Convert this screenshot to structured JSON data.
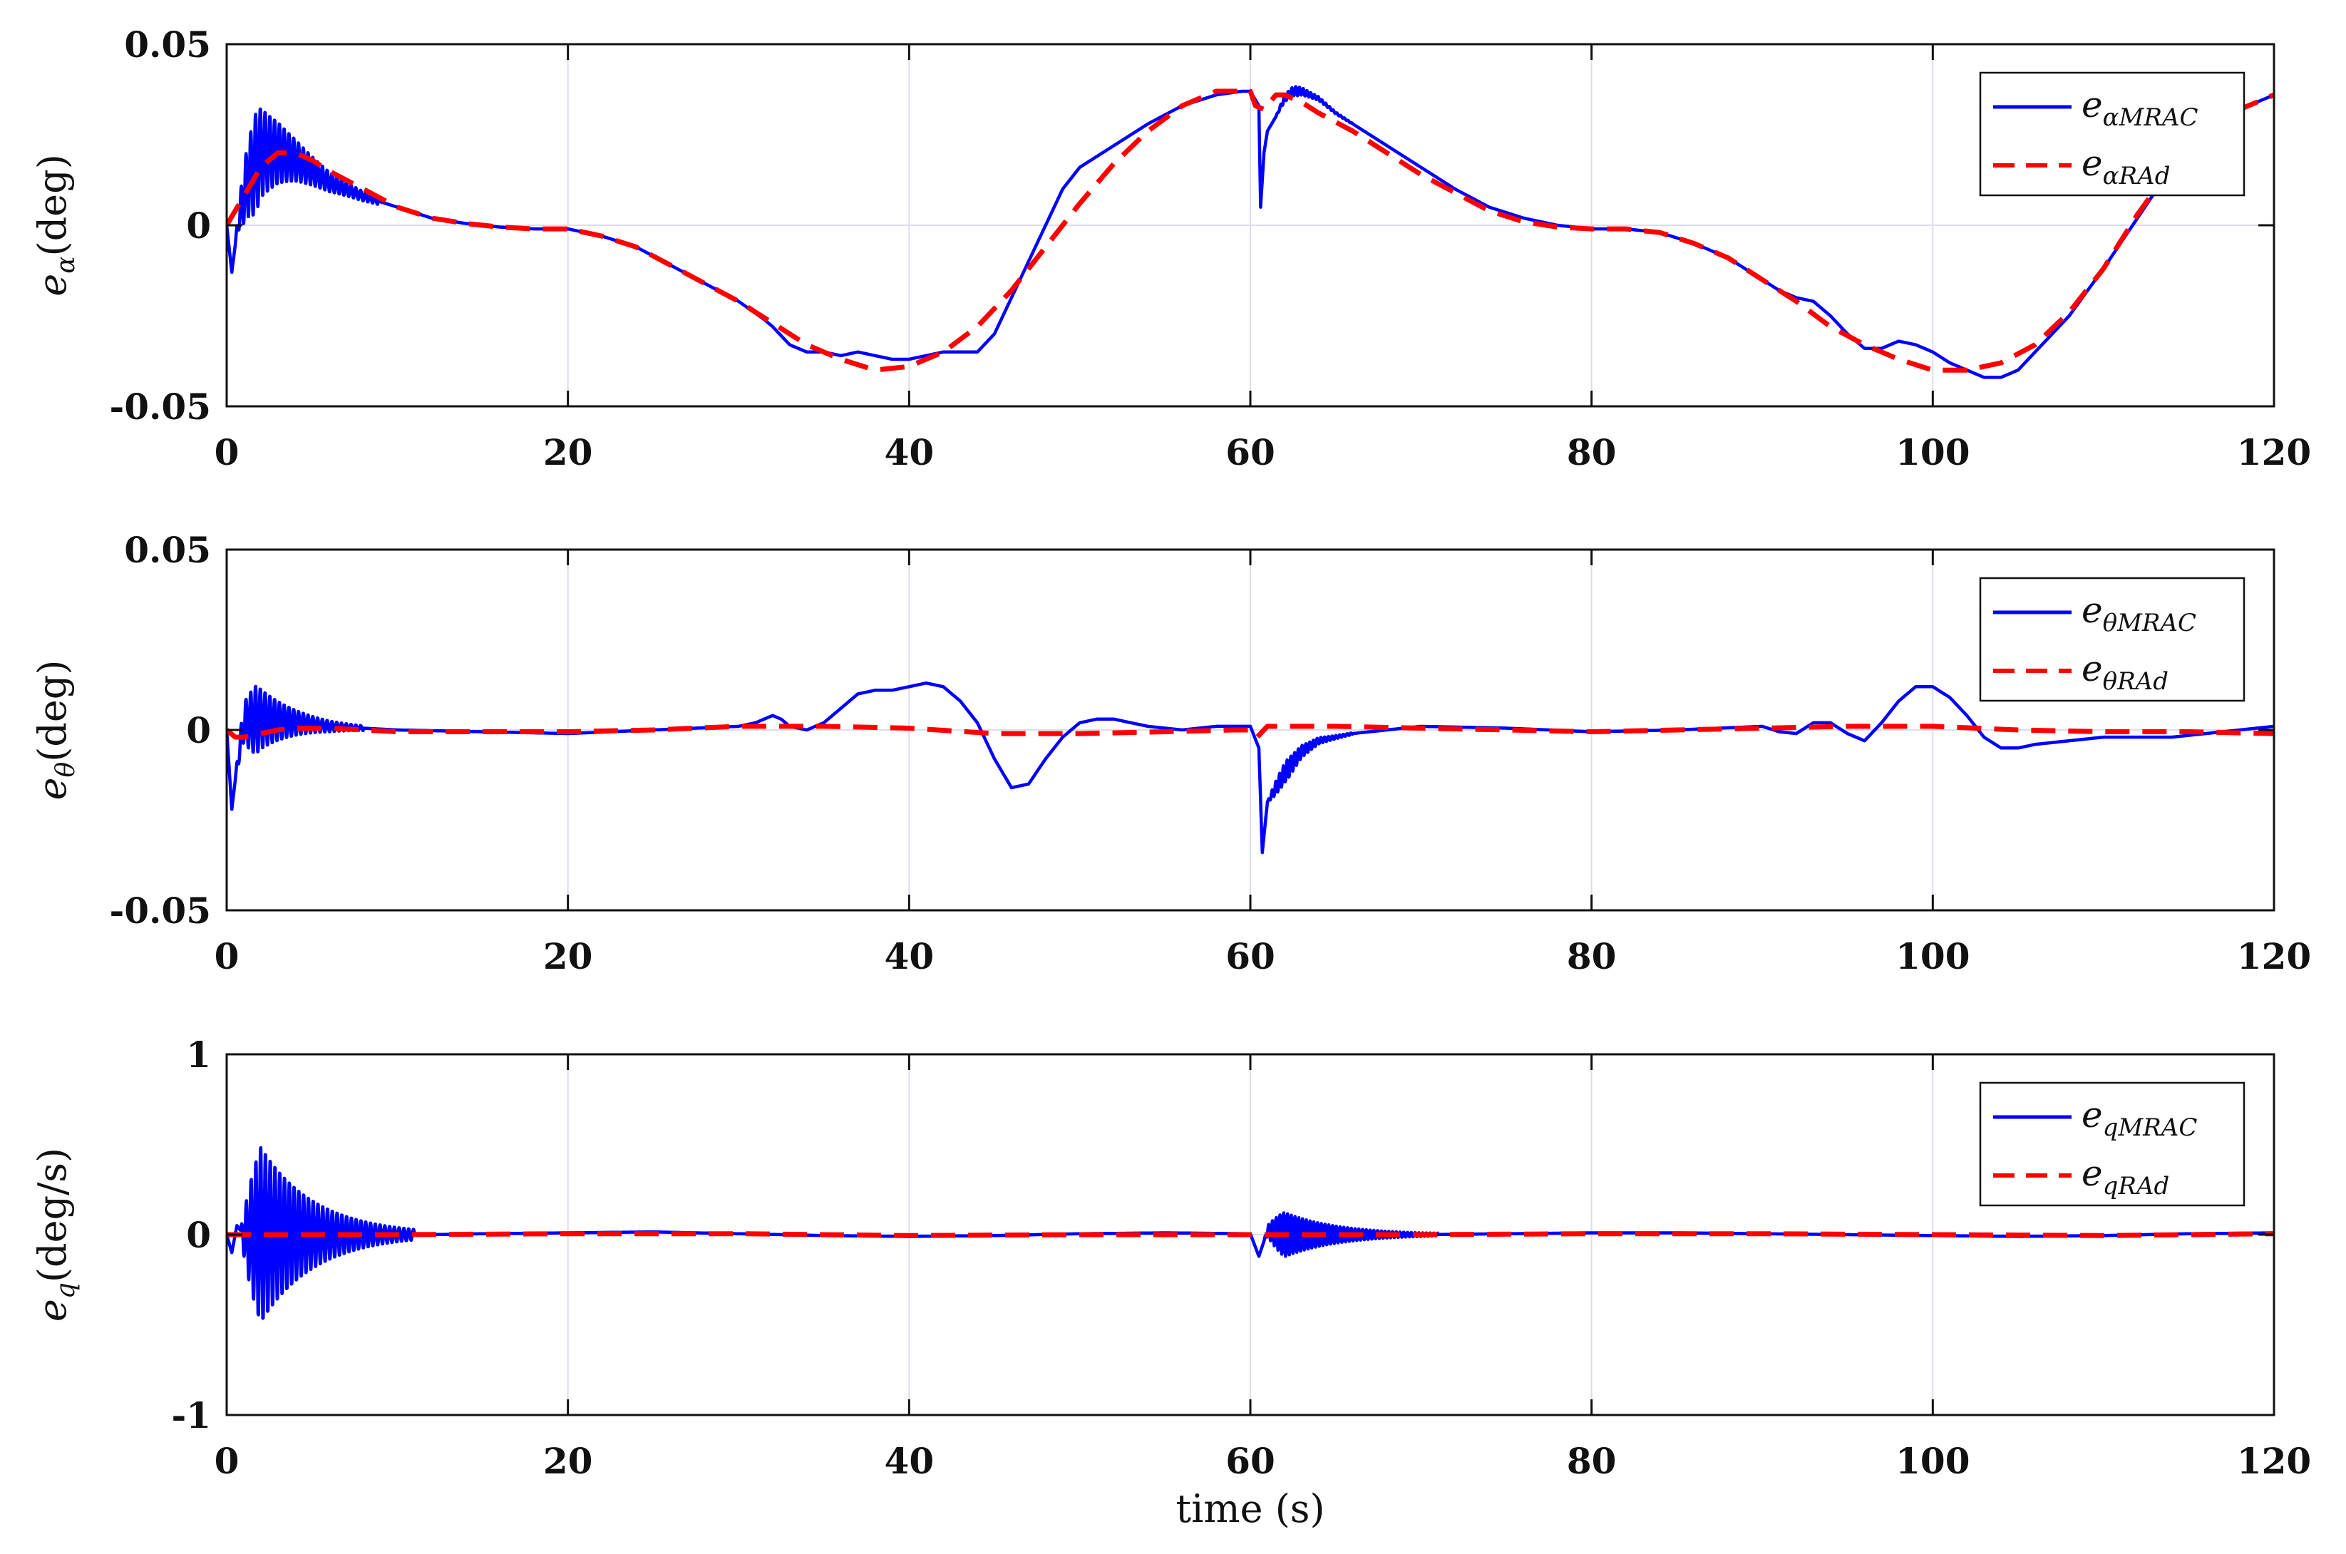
{
  "chart_data": [
    {
      "type": "line",
      "ylabel": "e_α(deg)",
      "ylabel_main": "e",
      "ylabel_sub": "α",
      "ylabel_unit": "(deg)",
      "xlim": [
        0,
        120
      ],
      "ylim": [
        -0.05,
        0.05
      ],
      "xticks": [
        "0",
        "20",
        "40",
        "60",
        "80",
        "100",
        "120"
      ],
      "yticks": [
        "-0.05",
        "0",
        "0.05"
      ],
      "grid": true,
      "legend_position": "top-right",
      "series": [
        {
          "name": "e_αMRAC",
          "legend_main": "e",
          "legend_sub": "αMRAC",
          "color": "#0000ff",
          "dash": "solid",
          "x": [
            0,
            0.3,
            0.7,
            1.2,
            2,
            3,
            4,
            5,
            6,
            7,
            8,
            10,
            12,
            14,
            16,
            18,
            20,
            22,
            24,
            26,
            28,
            30,
            31.5,
            32,
            33,
            34,
            35,
            36,
            37,
            38,
            39,
            40,
            41,
            42,
            43,
            44,
            45,
            46,
            47,
            48,
            49,
            50,
            52,
            54,
            56,
            58,
            59.5,
            60,
            60.5,
            60.6,
            60.8,
            61,
            61.5,
            62,
            62.5,
            63,
            64,
            65,
            66,
            68,
            70,
            72,
            74,
            76,
            78,
            80,
            82,
            84,
            86,
            88,
            90,
            91,
            92,
            93,
            94,
            95,
            96,
            97,
            98,
            99,
            100,
            101,
            102,
            103,
            104,
            105,
            106,
            108,
            110,
            112,
            114,
            116,
            118,
            120
          ],
          "y": [
            0,
            -0.013,
            0.002,
            0.012,
            0.02,
            0.02,
            0.018,
            0.015,
            0.012,
            0.01,
            0.008,
            0.005,
            0.002,
            0.0005,
            -0.0005,
            -0.001,
            -0.001,
            -0.003,
            -0.006,
            -0.011,
            -0.016,
            -0.021,
            -0.026,
            -0.028,
            -0.033,
            -0.035,
            -0.035,
            -0.036,
            -0.035,
            -0.036,
            -0.037,
            -0.037,
            -0.036,
            -0.035,
            -0.035,
            -0.035,
            -0.03,
            -0.02,
            -0.01,
            0.0,
            0.01,
            0.016,
            0.022,
            0.028,
            0.033,
            0.036,
            0.037,
            0.037,
            0.033,
            0.005,
            0.02,
            0.026,
            0.03,
            0.035,
            0.037,
            0.037,
            0.035,
            0.031,
            0.028,
            0.022,
            0.016,
            0.01,
            0.005,
            0.002,
            0.0,
            -0.001,
            -0.001,
            -0.002,
            -0.005,
            -0.009,
            -0.015,
            -0.018,
            -0.02,
            -0.021,
            -0.025,
            -0.03,
            -0.034,
            -0.034,
            -0.032,
            -0.033,
            -0.035,
            -0.038,
            -0.04,
            -0.042,
            -0.042,
            -0.04,
            -0.035,
            -0.025,
            -0.012,
            0.002,
            0.016,
            0.026,
            0.032,
            0.036
          ],
          "oscillation": [
            {
              "t0": 0.5,
              "t1": 9,
              "amp0": 0.022,
              "period": 0.28
            },
            {
              "t0": 61.5,
              "t1": 66,
              "amp0": 0.003,
              "period": 0.22
            }
          ]
        },
        {
          "name": "e_αRAd",
          "legend_main": "e",
          "legend_sub": "αRAd",
          "color": "#ff0000",
          "dash": "dashed",
          "x": [
            0,
            1,
            2,
            3,
            4,
            5,
            6,
            8,
            10,
            12,
            14,
            16,
            18,
            20,
            22,
            24,
            26,
            28,
            30,
            32,
            34,
            36,
            38,
            40,
            42,
            44,
            46,
            48,
            50,
            52,
            54,
            56,
            58,
            60,
            60.3,
            60.8,
            61.5,
            62,
            63,
            64,
            66,
            68,
            70,
            72,
            74,
            76,
            78,
            80,
            82,
            84,
            86,
            88,
            90,
            92,
            94,
            96,
            98,
            100,
            102,
            104,
            106,
            108,
            110,
            112,
            114,
            116,
            118,
            120
          ],
          "y": [
            0,
            0.008,
            0.016,
            0.02,
            0.02,
            0.018,
            0.015,
            0.01,
            0.005,
            0.002,
            0.0005,
            -0.0005,
            -0.001,
            -0.001,
            -0.003,
            -0.006,
            -0.011,
            -0.016,
            -0.021,
            -0.027,
            -0.033,
            -0.037,
            -0.04,
            -0.039,
            -0.035,
            -0.028,
            -0.018,
            -0.006,
            0.006,
            0.017,
            0.026,
            0.033,
            0.037,
            0.037,
            0.033,
            0.032,
            0.036,
            0.036,
            0.034,
            0.031,
            0.026,
            0.02,
            0.014,
            0.009,
            0.004,
            0.001,
            -0.0005,
            -0.001,
            -0.001,
            -0.002,
            -0.005,
            -0.009,
            -0.015,
            -0.021,
            -0.028,
            -0.033,
            -0.037,
            -0.04,
            -0.04,
            -0.038,
            -0.033,
            -0.024,
            -0.012,
            0.003,
            0.016,
            0.026,
            0.032,
            0.036
          ]
        }
      ]
    },
    {
      "type": "line",
      "ylabel": "e_θ(deg)",
      "ylabel_main": "e",
      "ylabel_sub": "θ",
      "ylabel_unit": "(deg)",
      "xlim": [
        0,
        120
      ],
      "ylim": [
        -0.05,
        0.05
      ],
      "xticks": [
        "0",
        "20",
        "40",
        "60",
        "80",
        "100",
        "120"
      ],
      "yticks": [
        "-0.05",
        "0",
        "0.05"
      ],
      "grid": true,
      "legend_position": "top-right",
      "series": [
        {
          "name": "e_θMRAC",
          "legend_main": "e",
          "legend_sub": "θMRAC",
          "color": "#0000ff",
          "dash": "solid",
          "x": [
            0,
            0.3,
            0.6,
            1,
            2,
            4,
            6,
            8,
            10,
            15,
            20,
            25,
            30,
            31,
            32,
            32.5,
            33,
            34,
            35,
            36,
            37,
            38,
            39,
            40,
            41,
            42,
            43,
            44,
            45,
            46,
            47,
            48,
            49,
            50,
            51,
            52,
            54,
            56,
            58,
            60,
            60.5,
            60.7,
            61,
            62,
            63,
            64,
            66,
            68,
            70,
            75,
            80,
            85,
            90,
            91,
            92,
            93,
            94,
            95,
            96,
            97,
            98,
            99,
            100,
            101,
            102,
            103,
            104,
            105,
            106,
            108,
            110,
            112,
            114,
            116,
            118,
            120
          ],
          "y": [
            0,
            -0.022,
            -0.01,
            0.002,
            0.003,
            0.002,
            0.001,
            0.0005,
            0,
            -0.0005,
            -0.001,
            0,
            0.001,
            0.002,
            0.004,
            0.003,
            0.001,
            0,
            0.002,
            0.006,
            0.01,
            0.011,
            0.011,
            0.012,
            0.013,
            0.012,
            0.008,
            0.002,
            -0.008,
            -0.016,
            -0.015,
            -0.008,
            -0.002,
            0.002,
            0.003,
            0.003,
            0.001,
            0,
            0.001,
            0.001,
            -0.005,
            -0.034,
            -0.02,
            -0.012,
            -0.006,
            -0.003,
            -0.001,
            0,
            0.001,
            0.0005,
            -0.0005,
            0,
            0.001,
            -0.0005,
            -0.001,
            0.002,
            0.002,
            -0.001,
            -0.003,
            0.002,
            0.008,
            0.012,
            0.012,
            0.009,
            0.004,
            -0.002,
            -0.005,
            -0.005,
            -0.004,
            -0.003,
            -0.002,
            -0.002,
            -0.002,
            -0.001,
            0,
            0.001
          ],
          "oscillation": [
            {
              "t0": 0.5,
              "t1": 8,
              "amp0": 0.016,
              "period": 0.28
            },
            {
              "t0": 61,
              "t1": 66,
              "amp0": 0.006,
              "period": 0.22
            }
          ]
        },
        {
          "name": "e_θRAd",
          "legend_main": "e",
          "legend_sub": "θRAd",
          "color": "#ff0000",
          "dash": "dashed",
          "x": [
            0,
            0.5,
            1,
            2,
            3,
            4,
            5,
            6,
            8,
            10,
            15,
            20,
            25,
            30,
            35,
            40,
            45,
            50,
            55,
            59,
            60,
            60.4,
            61,
            62,
            65,
            70,
            75,
            80,
            85,
            90,
            95,
            100,
            105,
            110,
            115,
            120
          ],
          "y": [
            0,
            -0.002,
            -0.002,
            -0.001,
            0,
            0.0005,
            0.0005,
            0.0005,
            0,
            -0.0005,
            -0.0005,
            -0.0005,
            0,
            0.001,
            0.001,
            0.0005,
            -0.001,
            -0.001,
            -0.0005,
            0,
            0,
            -0.002,
            0.001,
            0.001,
            0.001,
            0.0005,
            0,
            -0.0005,
            0,
            0.0005,
            0.001,
            0.001,
            0,
            -0.0005,
            -0.0005,
            -0.001
          ]
        }
      ]
    },
    {
      "type": "line",
      "ylabel": "e_q(deg/s)",
      "ylabel_main": "e",
      "ylabel_sub": "q",
      "ylabel_unit": "(deg/s)",
      "xlabel": "time (s)",
      "xlim": [
        0,
        120
      ],
      "ylim": [
        -1,
        1
      ],
      "xticks": [
        "0",
        "20",
        "40",
        "60",
        "80",
        "100",
        "120"
      ],
      "yticks": [
        "-1",
        "0",
        "1"
      ],
      "grid": true,
      "legend_position": "top-right",
      "series": [
        {
          "name": "e_qMRAC",
          "legend_main": "e",
          "legend_sub": "qMRAC",
          "color": "#0000ff",
          "dash": "solid",
          "x": [
            0,
            0.3,
            0.6,
            1,
            2,
            3,
            5,
            8,
            10,
            12,
            15,
            20,
            25,
            30,
            35,
            40,
            45,
            50,
            55,
            60,
            60.5,
            61,
            62,
            65,
            70,
            75,
            80,
            85,
            90,
            95,
            100,
            105,
            110,
            115,
            120
          ],
          "y": [
            0,
            -0.1,
            0.05,
            0,
            0,
            0,
            0,
            0,
            0,
            0,
            0.005,
            0.01,
            0.015,
            0.005,
            -0.005,
            -0.01,
            -0.005,
            0.005,
            0.01,
            0.005,
            -0.12,
            0.02,
            0,
            0,
            0,
            0.005,
            0.01,
            0.01,
            0.005,
            0,
            -0.005,
            -0.01,
            -0.005,
            0.005,
            0.01
          ],
          "oscillation": [
            {
              "t0": 0.8,
              "t1": 11,
              "amp0": 0.72,
              "period": 0.28
            },
            {
              "t0": 60.8,
              "t1": 71,
              "amp0": 0.18,
              "period": 0.22
            }
          ]
        },
        {
          "name": "e_qRAd",
          "legend_main": "e",
          "legend_sub": "qRAd",
          "color": "#ff0000",
          "dash": "dashed",
          "x": [
            0,
            10,
            20,
            30,
            40,
            50,
            60,
            61,
            70,
            80,
            90,
            100,
            110,
            120
          ],
          "y": [
            0,
            0,
            0.005,
            0.005,
            -0.005,
            0,
            0,
            0,
            0,
            0.005,
            0.005,
            0,
            -0.005,
            0.005
          ]
        }
      ]
    }
  ]
}
